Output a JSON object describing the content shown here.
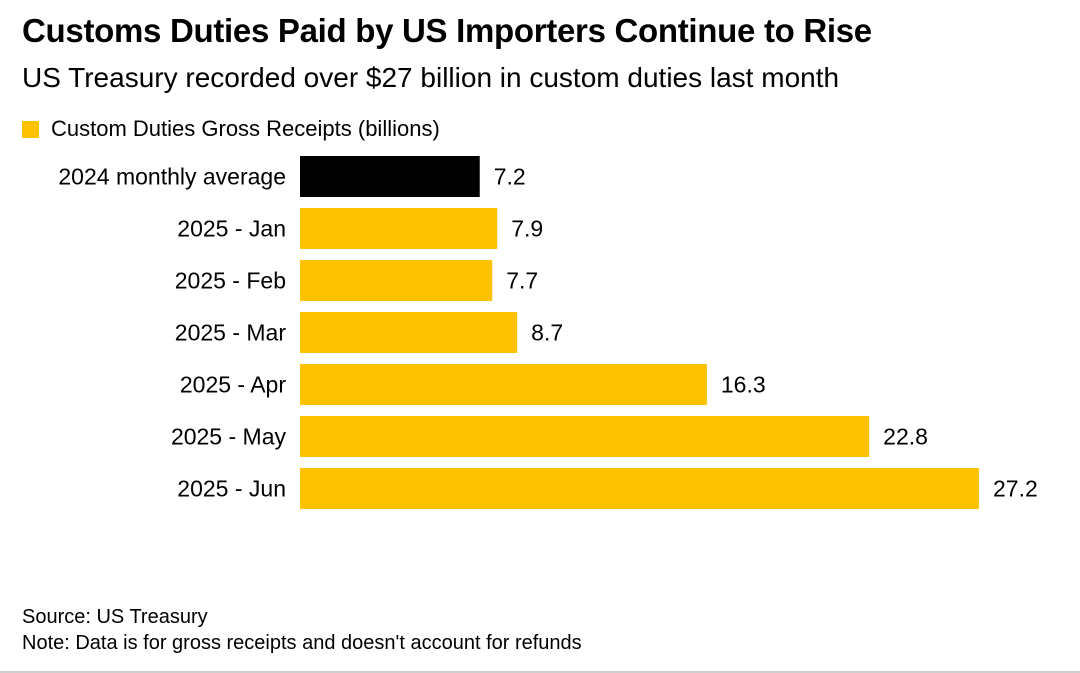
{
  "chart_data": {
    "type": "bar",
    "orientation": "horizontal",
    "title": "Customs Duties Paid by US Importers Continue to Rise",
    "subtitle": "US Treasury recorded over $27 billion in custom duties last month",
    "categories": [
      "2024 monthly average",
      "2025 - Jan",
      "2025 - Feb",
      "2025 - Mar",
      "2025 - Apr",
      "2025 - May",
      "2025 - Jun"
    ],
    "series": [
      {
        "name": "Custom Duties Gross Receipts (billions)",
        "values": [
          7.2,
          7.9,
          7.7,
          8.7,
          16.3,
          22.8,
          27.2
        ],
        "value_labels": [
          "7.2",
          "7.9",
          "7.7",
          "8.7",
          "16.3",
          "22.8",
          "27.2"
        ]
      }
    ],
    "bar_colors": [
      "#000000",
      "#fec300",
      "#fec300",
      "#fec300",
      "#fec300",
      "#fec300",
      "#fec300"
    ],
    "series_color": "#fec300",
    "xlim": [
      0,
      27.2
    ],
    "grid": false,
    "legend_position": "top-left",
    "xlabel": "",
    "ylabel": ""
  },
  "footer": {
    "source": "Source: US Treasury",
    "note": "Note: Data is for gross receipts and doesn't account for refunds"
  }
}
